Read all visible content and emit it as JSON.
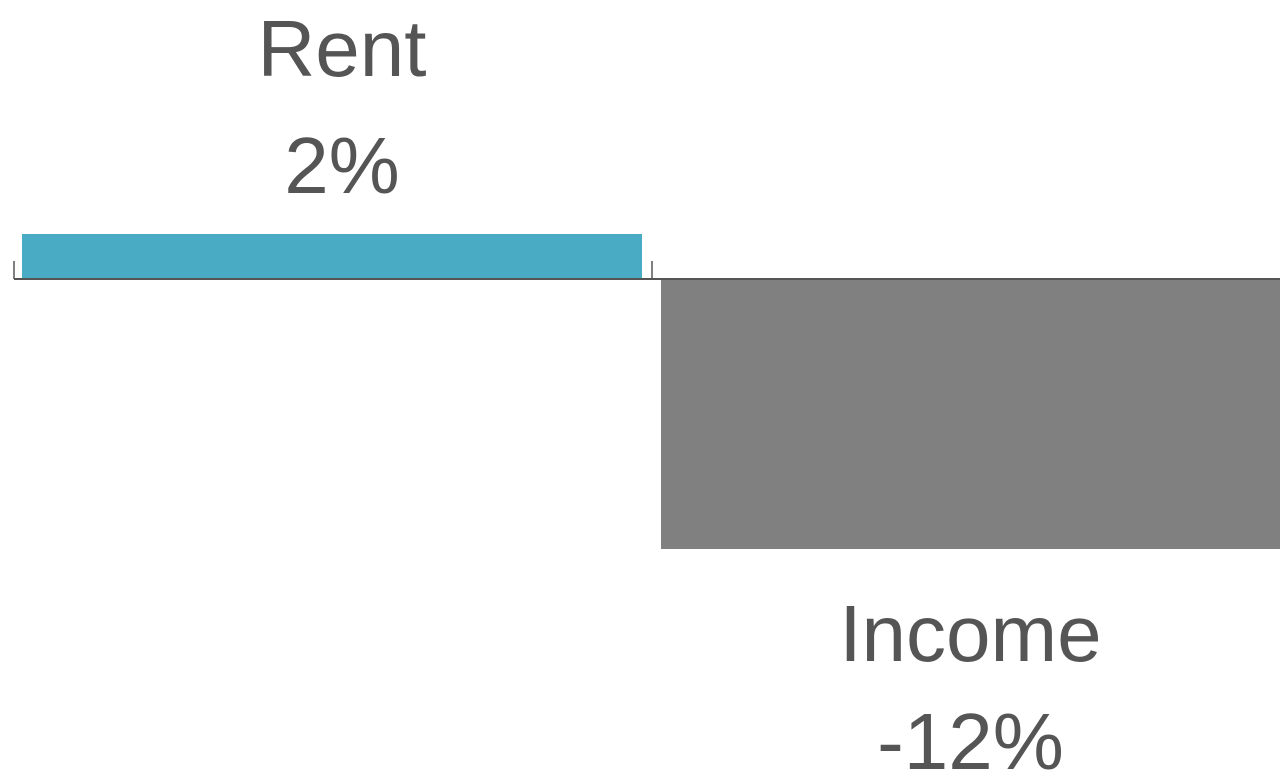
{
  "chart_data": {
    "type": "bar",
    "categories": [
      "Rent",
      "Income"
    ],
    "values": [
      2,
      -12
    ],
    "value_labels": [
      "2%",
      "-12%"
    ],
    "colors": [
      "#4aabc5",
      "#808080"
    ]
  }
}
